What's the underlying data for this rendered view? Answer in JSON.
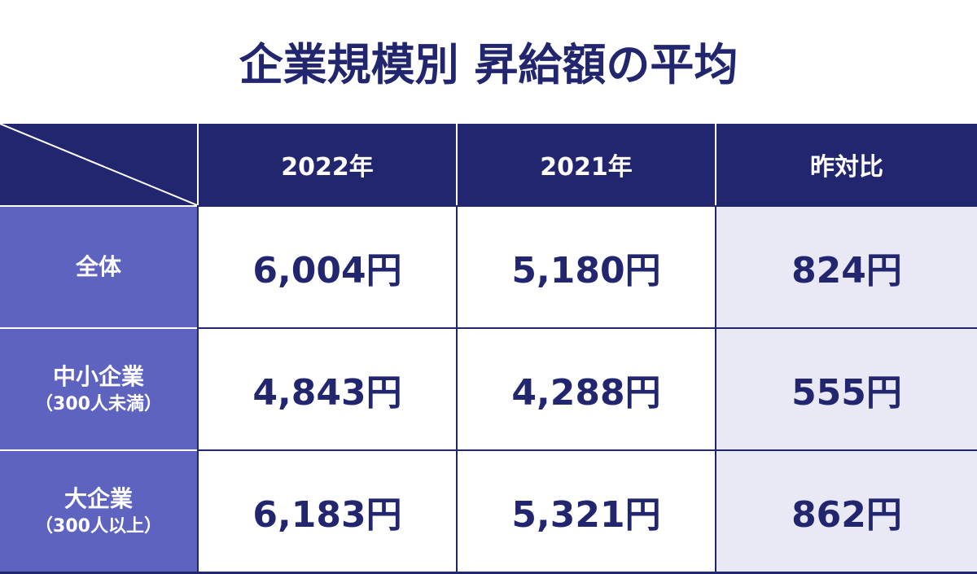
{
  "title": "企業規模別 昇給額の平均",
  "table": {
    "header": [
      "2022年",
      "2021年",
      "昨対比"
    ],
    "rows": [
      {
        "label": "全体",
        "values": [
          "6,004円",
          "5,180円",
          "824円"
        ]
      },
      {
        "label": "中小企業",
        "sublabel": "（300人未満）",
        "values": [
          "4,843円",
          "4,288円",
          "555円"
        ]
      },
      {
        "label": "大企業",
        "sublabel": "（300人以上）",
        "values": [
          "6,183円",
          "5,321円",
          "862円"
        ]
      }
    ]
  }
}
